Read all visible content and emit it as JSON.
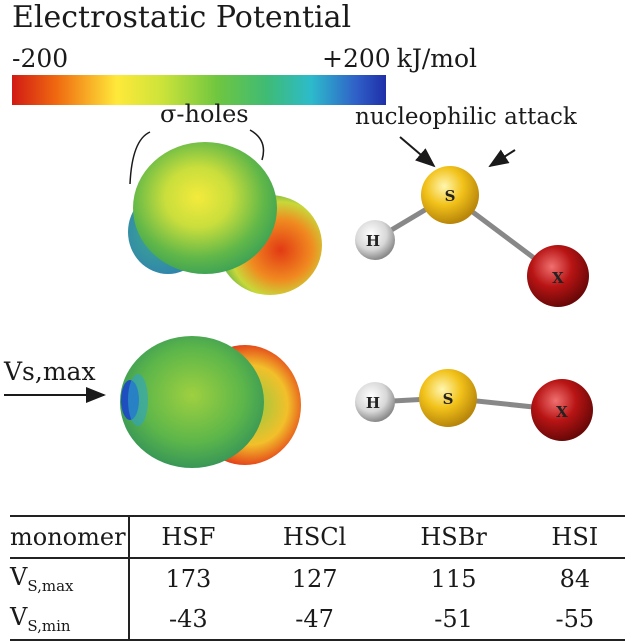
{
  "header": {
    "title": "Electrostatic Potential",
    "scale_min": "-200",
    "scale_max": "+200",
    "scale_unit": "kJ/mol"
  },
  "labels": {
    "sigma_holes": "σ-holes",
    "nucleophilic_attack": "nucleophilic attack",
    "vs_max": "Vs,max"
  },
  "atoms": {
    "hydrogen": "H",
    "sulfur": "S",
    "halogen": "X"
  },
  "table": {
    "headers": [
      "monomer",
      "HSF",
      "HSCl",
      "HSBr",
      "HSI"
    ],
    "rows": [
      {
        "label_main": "V",
        "label_sub": "S,max",
        "values": [
          "173",
          "127",
          "115",
          "84"
        ]
      },
      {
        "label_main": "V",
        "label_sub": "S,min",
        "values": [
          "-43",
          "-47",
          "-51",
          "-55"
        ]
      }
    ]
  },
  "colors": {
    "colorbar": [
      "#d11a14",
      "#f06a10",
      "#ffe93a",
      "#cde33a",
      "#6fc640",
      "#3fbb74",
      "#2dbbcb",
      "#2f60c8",
      "#1f2fa8"
    ],
    "sulfur": "#f2c21a",
    "halogen": "#b81414",
    "hydrogen": "#e8e8e8"
  }
}
